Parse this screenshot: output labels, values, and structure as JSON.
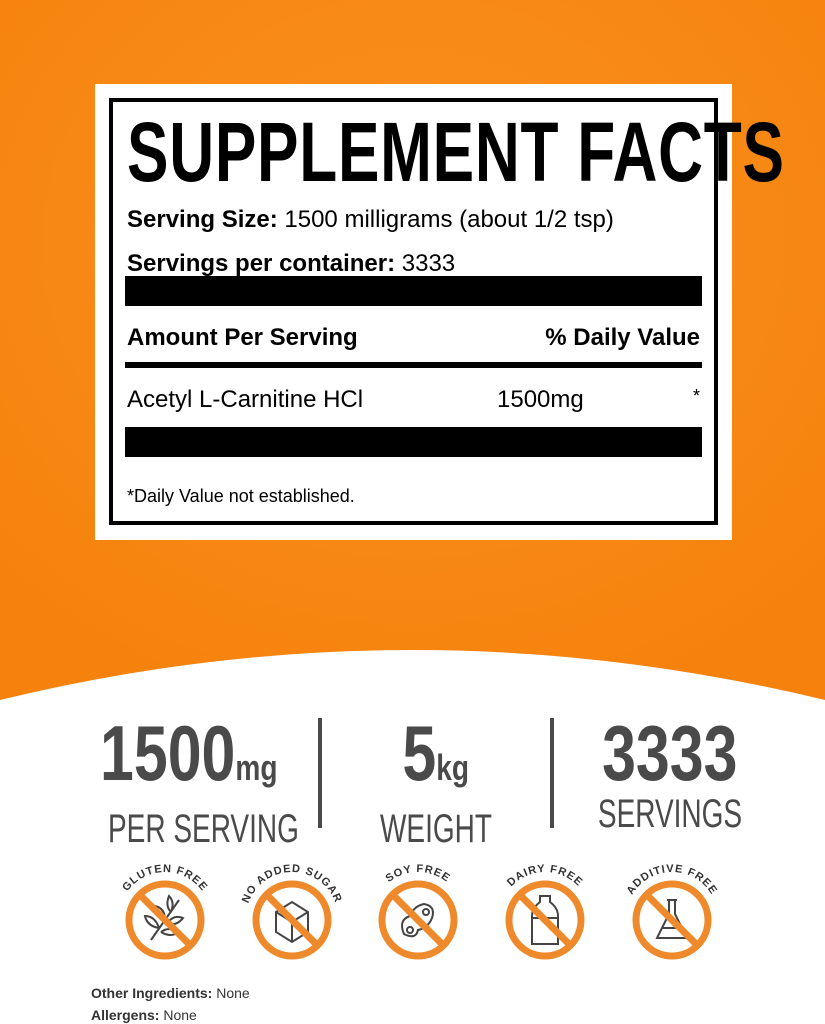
{
  "colors": {
    "orange": "#f7860f",
    "icon_orange": "#ef8a2c",
    "dark_gray": "#4a4a4a"
  },
  "label": {
    "title": "SUPPLEMENT FACTS",
    "serving_size_label": "Serving Size:",
    "serving_size_value": "1500 milligrams (about 1/2 tsp)",
    "servings_label": "Servings per container:",
    "servings_value": "3333",
    "amount_header": "Amount Per Serving",
    "dv_header": "% Daily Value",
    "ingredient": {
      "name": "Acetyl L-Carnitine HCl",
      "amount": "1500mg",
      "dv": "*"
    },
    "footnote": "*Daily Value not established."
  },
  "stats": [
    {
      "value": "1500",
      "unit": "mg",
      "label": "PER SERVING"
    },
    {
      "value": "5",
      "unit": "kg",
      "label": "WEIGHT"
    },
    {
      "value": "3333",
      "unit": "",
      "label": "SERVINGS"
    }
  ],
  "badges": [
    {
      "label": "GLUTEN FREE",
      "icon": "wheat-icon"
    },
    {
      "label": "NO ADDED SUGAR",
      "icon": "sugar-cube-icon"
    },
    {
      "label": "SOY FREE",
      "icon": "soybean-icon"
    },
    {
      "label": "DAIRY FREE",
      "icon": "milk-bottle-icon"
    },
    {
      "label": "ADDITIVE FREE",
      "icon": "flask-icon"
    }
  ],
  "other_ingredients": {
    "label": "Other Ingredients:",
    "value": "None"
  },
  "allergens": {
    "label": "Allergens:",
    "value": "None"
  }
}
